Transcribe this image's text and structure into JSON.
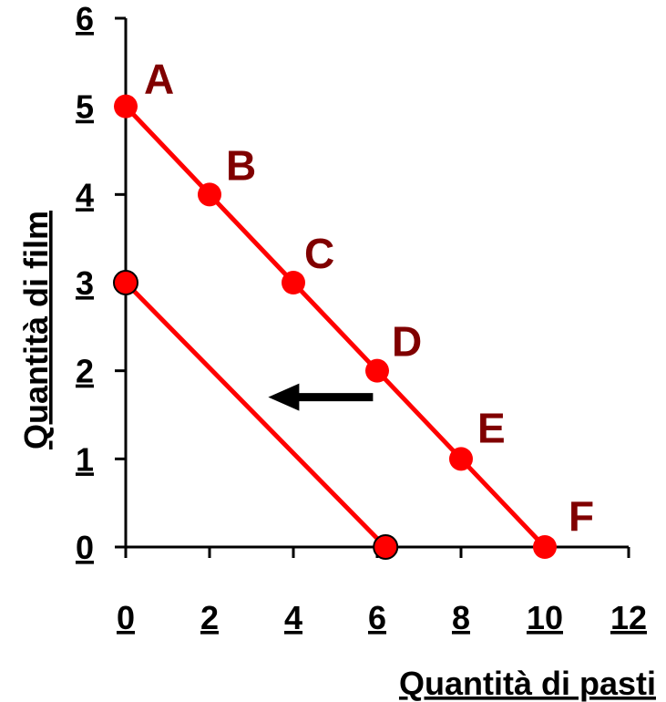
{
  "chart_data": {
    "type": "line",
    "xlabel": "Quantità di pasti",
    "ylabel": "Quantità di film",
    "xlim": [
      0,
      12
    ],
    "ylim": [
      0,
      6
    ],
    "x_ticks": [
      "0",
      "2",
      "4",
      "6",
      "8",
      "10",
      "12"
    ],
    "y_ticks": [
      "0",
      "1",
      "2",
      "3",
      "4",
      "5",
      "6"
    ],
    "grid": false,
    "series": [
      {
        "points": [
          {
            "label": "A",
            "x": 0,
            "y": 5
          },
          {
            "label": "B",
            "x": 2,
            "y": 4
          },
          {
            "label": "C",
            "x": 4,
            "y": 3
          },
          {
            "label": "D",
            "x": 6,
            "y": 2
          },
          {
            "label": "E",
            "x": 8,
            "y": 1
          },
          {
            "label": "F",
            "x": 10,
            "y": 0
          }
        ],
        "marker_outline": false
      },
      {
        "points": [
          {
            "label": "",
            "x": 0,
            "y": 3
          },
          {
            "label": "",
            "x": 6.2,
            "y": 0
          }
        ],
        "marker_outline": true
      }
    ],
    "annotations": [
      {
        "type": "arrow",
        "direction": "left",
        "from": {
          "x": 5.9,
          "y": 1.7
        },
        "to": {
          "x": 3.4,
          "y": 1.7
        }
      }
    ],
    "colors": {
      "line": "#ff0000",
      "marker": "#ff0000",
      "point_label": "#800000",
      "axis": "#000000",
      "arrow": "#000000"
    }
  }
}
